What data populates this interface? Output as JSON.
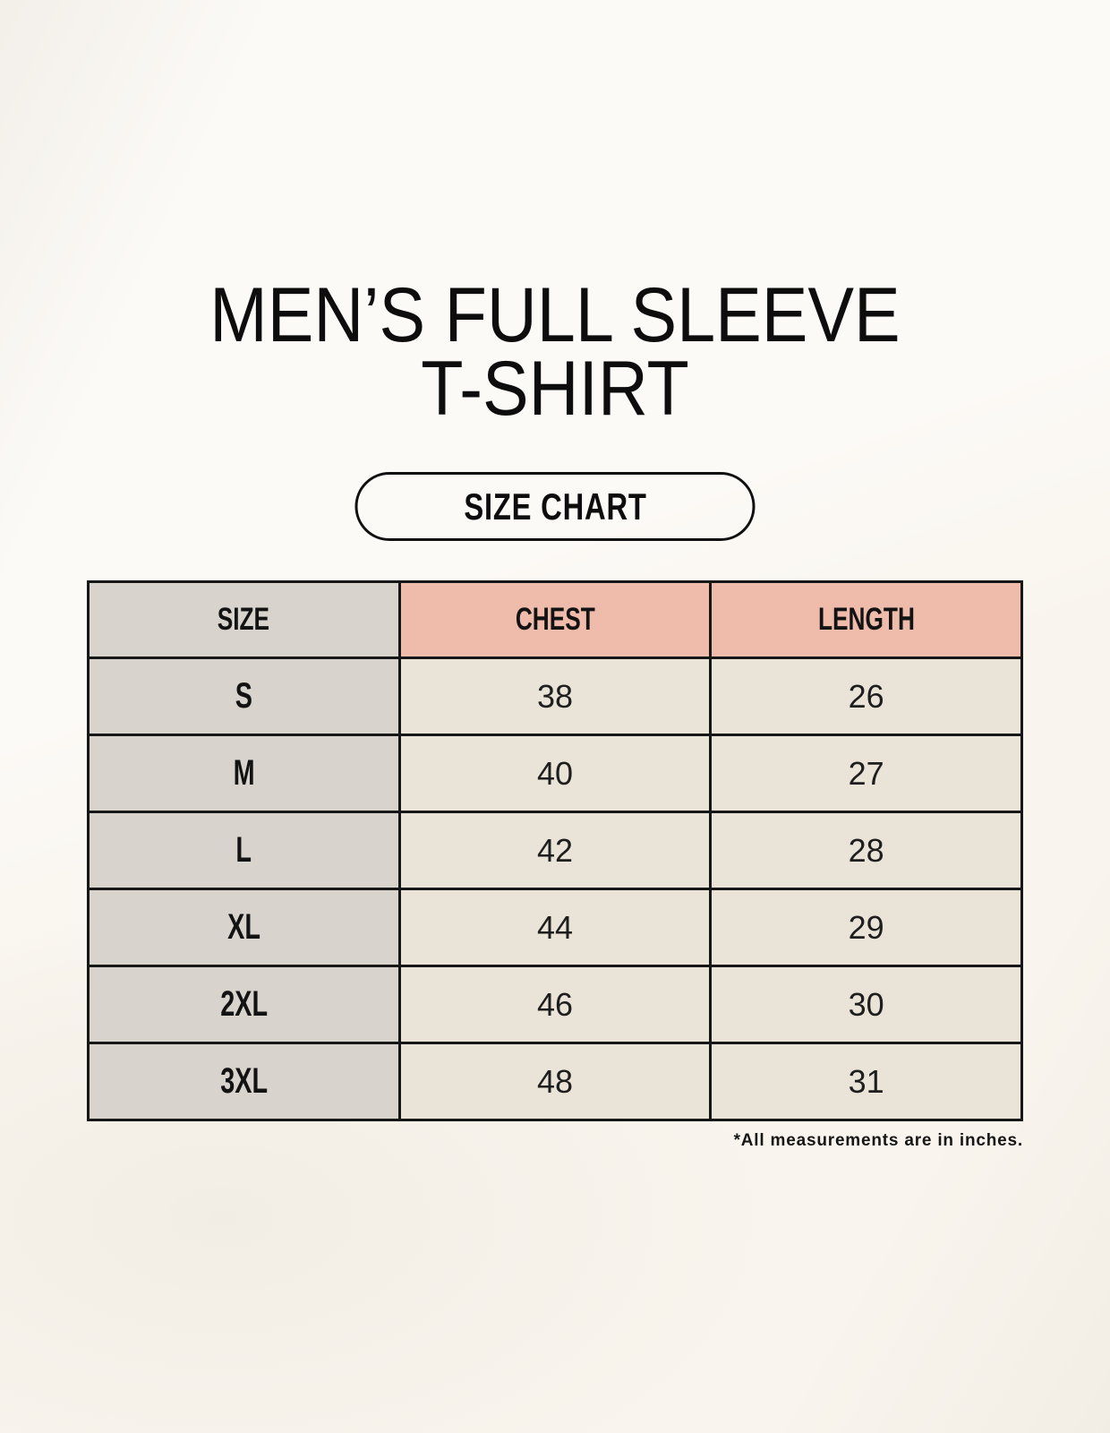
{
  "page": {
    "title_line1": "MEN’S FULL SLEEVE",
    "title_line2": "T-SHIRT",
    "size_chart_label": "SIZE CHART",
    "footnote": "*All measurements are in inches."
  },
  "table": {
    "columns": [
      "SIZE",
      "CHEST",
      "LENGTH"
    ],
    "rows": [
      {
        "size": "S",
        "chest": "38",
        "length": "26"
      },
      {
        "size": "M",
        "chest": "40",
        "length": "27"
      },
      {
        "size": "L",
        "chest": "42",
        "length": "28"
      },
      {
        "size": "XL",
        "chest": "44",
        "length": "29"
      },
      {
        "size": "2XL",
        "chest": "46",
        "length": "30"
      },
      {
        "size": "3XL",
        "chest": "48",
        "length": "31"
      }
    ]
  },
  "colors": {
    "background": "#f9f5ee",
    "header_accent": "#efbcac",
    "size_column": "#d9d3cd",
    "data_cell": "#eae3d8",
    "border": "#171717",
    "text": "#111111"
  },
  "chart_data": {
    "type": "table",
    "title": "MEN’S FULL SLEEVE T-SHIRT — SIZE CHART",
    "columns": [
      "SIZE",
      "CHEST",
      "LENGTH"
    ],
    "units": "inches",
    "rows": [
      [
        "S",
        38,
        26
      ],
      [
        "M",
        40,
        27
      ],
      [
        "L",
        42,
        28
      ],
      [
        "XL",
        44,
        29
      ],
      [
        "2XL",
        46,
        30
      ],
      [
        "3XL",
        48,
        31
      ]
    ],
    "note": "*All measurements are in inches."
  }
}
